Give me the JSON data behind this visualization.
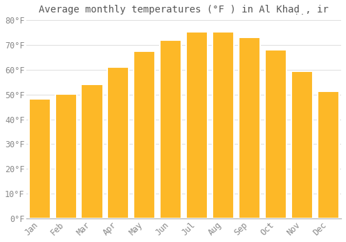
{
  "title": "Average monthly temperatures (°F ) in Al Khaḍ̣, ir",
  "months": [
    "Jan",
    "Feb",
    "Mar",
    "Apr",
    "May",
    "Jun",
    "Jul",
    "Aug",
    "Sep",
    "Oct",
    "Nov",
    "Dec"
  ],
  "values": [
    48.2,
    50.2,
    54.0,
    61.0,
    67.5,
    72.0,
    75.2,
    75.4,
    73.0,
    68.0,
    59.5,
    51.2
  ],
  "bar_color_main": "#FDB827",
  "bar_color_edge": "#F0A500",
  "ylim": [
    0,
    80
  ],
  "ytick_step": 10,
  "background_color": "#FFFFFF",
  "grid_color": "#DDDDDD",
  "title_fontsize": 10,
  "tick_fontsize": 8.5,
  "font_family": "monospace"
}
